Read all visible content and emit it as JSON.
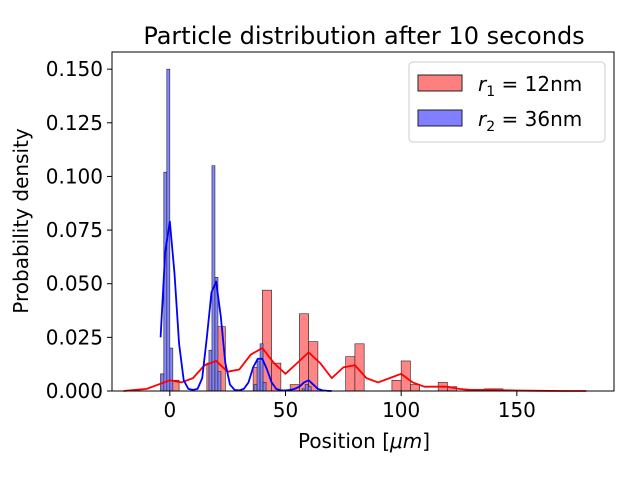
{
  "chart_data": {
    "type": "histogram",
    "title": "Particle distribution after 10 seconds",
    "xlabel_main": "Position [",
    "xlabel_unit": "μm",
    "xlabel_end": "]",
    "ylabel": "Probability density",
    "xlim": [
      -25,
      192
    ],
    "ylim": [
      0,
      0.158
    ],
    "xticks": [
      0,
      50,
      100,
      150
    ],
    "xtick_labels": [
      "0",
      "50",
      "100",
      "150"
    ],
    "yticks": [
      0,
      0.025,
      0.05,
      0.075,
      0.1,
      0.125,
      0.15
    ],
    "ytick_labels": [
      "0.000",
      "0.025",
      "0.050",
      "0.075",
      "0.100",
      "0.125",
      "0.150"
    ],
    "legend_position": "top-right",
    "series": [
      {
        "name": "r",
        "name_sub": "1",
        "name_rest": " = 12nm",
        "color": "#ff0000",
        "fill": "#ff7f7f",
        "bin_width": 4.0,
        "bins": [
          [
            -4,
            0.008
          ],
          [
            0,
            0.005
          ],
          [
            16,
            0.013
          ],
          [
            20,
            0.03
          ],
          [
            36,
            0.011
          ],
          [
            40,
            0.047
          ],
          [
            44,
            0.013
          ],
          [
            52,
            0.003
          ],
          [
            56,
            0.036
          ],
          [
            60,
            0.023
          ],
          [
            76,
            0.016
          ],
          [
            80,
            0.022
          ],
          [
            96,
            0.005
          ],
          [
            100,
            0.014
          ],
          [
            104,
            0.003
          ],
          [
            116,
            0.004
          ],
          [
            120,
            0.002
          ],
          [
            136,
            0.001
          ],
          [
            140,
            0.001
          ]
        ],
        "kde_x": [
          -20,
          -10,
          -5,
          0,
          5,
          10,
          15,
          20,
          25,
          30,
          35,
          40,
          45,
          50,
          55,
          60,
          65,
          70,
          75,
          80,
          85,
          90,
          95,
          100,
          105,
          110,
          115,
          120,
          125,
          130,
          135,
          140,
          150,
          160,
          170,
          180
        ],
        "kde_y": [
          0.0,
          0.001,
          0.003,
          0.005,
          0.004,
          0.006,
          0.012,
          0.014,
          0.009,
          0.01,
          0.017,
          0.02,
          0.013,
          0.008,
          0.013,
          0.018,
          0.013,
          0.006,
          0.011,
          0.012,
          0.006,
          0.004,
          0.006,
          0.008,
          0.004,
          0.002,
          0.002,
          0.002,
          0.001,
          0.0005,
          0.0005,
          0.0005,
          0.0002,
          0.0001,
          0.0,
          0.0
        ]
      },
      {
        "name": "r",
        "name_sub": "2",
        "name_rest": " = 36nm",
        "color": "#0000ff",
        "fill": "#7f7fff",
        "bin_width": 1.3,
        "bins": [
          [
            -3.9,
            0.008
          ],
          [
            -2.6,
            0.102
          ],
          [
            -1.3,
            0.15
          ],
          [
            0,
            0.02
          ],
          [
            16.9,
            0.019
          ],
          [
            18.2,
            0.105
          ],
          [
            19.5,
            0.053
          ],
          [
            20.8,
            0.009
          ],
          [
            36.4,
            0.003
          ],
          [
            37.7,
            0.014
          ],
          [
            39,
            0.022
          ],
          [
            40.3,
            0.004
          ],
          [
            57.2,
            0.001
          ],
          [
            58.5,
            0.003
          ],
          [
            59.8,
            0.002
          ]
        ],
        "kde_x": [
          -4,
          -2,
          0,
          2,
          4,
          6,
          8,
          10,
          12,
          14,
          16,
          18,
          20,
          22,
          24,
          26,
          28,
          30,
          32,
          34,
          36,
          38,
          40,
          42,
          44,
          46,
          48,
          50,
          52,
          54,
          56,
          58,
          60,
          62,
          64,
          66,
          68,
          70
        ],
        "kde_y": [
          0.025,
          0.065,
          0.079,
          0.055,
          0.022,
          0.005,
          0.001,
          0.0005,
          0.001,
          0.006,
          0.025,
          0.046,
          0.051,
          0.035,
          0.013,
          0.003,
          0.0005,
          0.0003,
          0.001,
          0.004,
          0.011,
          0.015,
          0.015,
          0.01,
          0.004,
          0.001,
          0.0003,
          0.0003,
          0.0005,
          0.001,
          0.002,
          0.004,
          0.005,
          0.003,
          0.001,
          0.0003,
          0.0001,
          0.0
        ]
      }
    ]
  }
}
